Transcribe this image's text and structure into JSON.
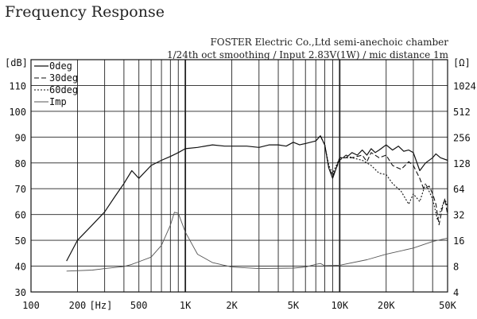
{
  "chart_data": {
    "type": "line",
    "title": "Frequency Response",
    "subtitle_lines": [
      "FOSTER Electric Co.,Ltd  semi-anechoic chamber",
      "1/24th oct smoothing / Input 2.83V(1W) / mic distance 1m"
    ],
    "x_scale": "log",
    "xlim": [
      100,
      50000
    ],
    "x_ticks": [
      {
        "v": 100,
        "label": "100"
      },
      {
        "v": 200,
        "label": "200"
      },
      {
        "v": 500,
        "label": "500"
      },
      {
        "v": 1000,
        "label": "1K"
      },
      {
        "v": 2000,
        "label": "2K"
      },
      {
        "v": 5000,
        "label": "5K"
      },
      {
        "v": 10000,
        "label": "10K"
      },
      {
        "v": 20000,
        "label": "20K"
      },
      {
        "v": 50000,
        "label": "50K"
      }
    ],
    "xlabel": "[Hz]",
    "ylabel": "[dB]",
    "ylim": [
      30,
      120
    ],
    "y_ticks": [
      30,
      40,
      50,
      60,
      70,
      80,
      90,
      100,
      110
    ],
    "y2label": "[Ω]",
    "y2_scale": "log2",
    "y2_ticks": [
      4,
      8,
      16,
      32,
      64,
      128,
      256,
      512,
      1024
    ],
    "grid": true,
    "legend_position": "top-left",
    "series": [
      {
        "name": "0deg",
        "style": "solid",
        "axis": "left",
        "points": [
          [
            170,
            42
          ],
          [
            200,
            50
          ],
          [
            250,
            56
          ],
          [
            300,
            61
          ],
          [
            350,
            67
          ],
          [
            400,
            72
          ],
          [
            450,
            77
          ],
          [
            500,
            74
          ],
          [
            600,
            79
          ],
          [
            700,
            81
          ],
          [
            800,
            82.5
          ],
          [
            900,
            84
          ],
          [
            1000,
            85.5
          ],
          [
            1200,
            86
          ],
          [
            1500,
            87
          ],
          [
            1800,
            86.5
          ],
          [
            2000,
            86.5
          ],
          [
            2500,
            86.5
          ],
          [
            3000,
            86
          ],
          [
            3500,
            87
          ],
          [
            4000,
            87
          ],
          [
            4500,
            86.5
          ],
          [
            5000,
            88
          ],
          [
            5500,
            87
          ],
          [
            6000,
            87.5
          ],
          [
            7000,
            88.5
          ],
          [
            7500,
            90.5
          ],
          [
            8000,
            87
          ],
          [
            8500,
            78
          ],
          [
            9000,
            74
          ],
          [
            9500,
            78
          ],
          [
            10000,
            82
          ],
          [
            11000,
            82
          ],
          [
            12000,
            84
          ],
          [
            13000,
            83
          ],
          [
            14000,
            85
          ],
          [
            15000,
            83
          ],
          [
            16000,
            85.5
          ],
          [
            17000,
            84
          ],
          [
            18000,
            85
          ],
          [
            20000,
            87
          ],
          [
            22000,
            85
          ],
          [
            24000,
            86.5
          ],
          [
            26000,
            84.5
          ],
          [
            28000,
            85
          ],
          [
            30000,
            84
          ],
          [
            33000,
            77
          ],
          [
            36000,
            80
          ],
          [
            40000,
            82
          ],
          [
            42000,
            83.5
          ],
          [
            45000,
            82
          ],
          [
            50000,
            81
          ]
        ]
      },
      {
        "name": "30deg",
        "style": "dashed",
        "axis": "left",
        "points": [
          [
            7500,
            90.5
          ],
          [
            8000,
            87
          ],
          [
            8500,
            78
          ],
          [
            9000,
            75
          ],
          [
            9500,
            78
          ],
          [
            10000,
            81
          ],
          [
            11000,
            83
          ],
          [
            12000,
            82
          ],
          [
            14000,
            83
          ],
          [
            15000,
            80.5
          ],
          [
            16000,
            84
          ],
          [
            18000,
            82
          ],
          [
            20000,
            83
          ],
          [
            22000,
            79
          ],
          [
            25000,
            77.5
          ],
          [
            28000,
            80.5
          ],
          [
            30000,
            79
          ],
          [
            33000,
            74
          ],
          [
            35000,
            70
          ],
          [
            38000,
            71
          ],
          [
            40000,
            68
          ],
          [
            42000,
            64
          ],
          [
            44000,
            56
          ],
          [
            46000,
            62
          ],
          [
            48000,
            66
          ],
          [
            50000,
            60
          ]
        ]
      },
      {
        "name": "60deg",
        "style": "dotted",
        "axis": "left",
        "points": [
          [
            7500,
            90.5
          ],
          [
            8000,
            87
          ],
          [
            8500,
            79
          ],
          [
            9000,
            76
          ],
          [
            9500,
            79
          ],
          [
            10000,
            82
          ],
          [
            12000,
            82
          ],
          [
            14000,
            81
          ],
          [
            16000,
            79
          ],
          [
            18000,
            76
          ],
          [
            20000,
            75.5
          ],
          [
            22000,
            72
          ],
          [
            25000,
            69
          ],
          [
            28000,
            64
          ],
          [
            30000,
            68
          ],
          [
            33000,
            65
          ],
          [
            36000,
            72
          ],
          [
            40000,
            66
          ],
          [
            43000,
            58
          ],
          [
            46000,
            63
          ],
          [
            48000,
            66
          ],
          [
            50000,
            63
          ]
        ]
      },
      {
        "name": "Imp",
        "style": "solid-gray",
        "axis": "right",
        "points": [
          [
            170,
            7.0
          ],
          [
            250,
            7.2
          ],
          [
            300,
            7.5
          ],
          [
            400,
            7.9
          ],
          [
            450,
            8.4
          ],
          [
            500,
            9.0
          ],
          [
            600,
            10.2
          ],
          [
            700,
            14
          ],
          [
            800,
            24
          ],
          [
            850,
            34
          ],
          [
            900,
            33
          ],
          [
            1000,
            20
          ],
          [
            1200,
            11
          ],
          [
            1500,
            8.8
          ],
          [
            2000,
            7.8
          ],
          [
            3000,
            7.5
          ],
          [
            5000,
            7.6
          ],
          [
            6000,
            7.8
          ],
          [
            7000,
            8.4
          ],
          [
            7500,
            8.6
          ],
          [
            8000,
            8.1
          ],
          [
            10000,
            8.2
          ],
          [
            15000,
            9.5
          ],
          [
            20000,
            11
          ],
          [
            30000,
            13
          ],
          [
            40000,
            15.5
          ],
          [
            50000,
            17
          ]
        ]
      }
    ]
  }
}
